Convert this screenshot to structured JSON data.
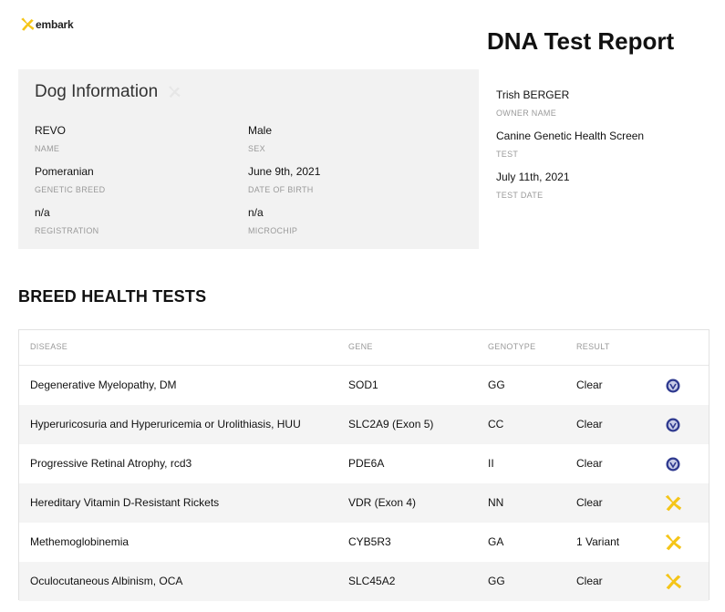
{
  "brand": {
    "name": "embark",
    "accent": "#f5c518"
  },
  "report": {
    "title": "DNA Test Report"
  },
  "dog_info": {
    "title": "Dog Information",
    "fields": [
      {
        "value": "REVO",
        "label": "NAME"
      },
      {
        "value": "Male",
        "label": "SEX"
      },
      {
        "value": "Pomeranian",
        "label": "GENETIC BREED"
      },
      {
        "value": "June 9th, 2021",
        "label": "DATE OF BIRTH"
      },
      {
        "value": "n/a",
        "label": "REGISTRATION"
      },
      {
        "value": "n/a",
        "label": "MICROCHIP"
      }
    ]
  },
  "owner_info": [
    {
      "value": "Trish BERGER",
      "label": "OWNER NAME"
    },
    {
      "value": "Canine Genetic Health Screen",
      "label": "TEST"
    },
    {
      "value": "July 11th, 2021",
      "label": "TEST DATE"
    }
  ],
  "breed_health": {
    "title": "BREED HEALTH TESTS",
    "headers": {
      "disease": "DISEASE",
      "gene": "GENE",
      "genotype": "GENOTYPE",
      "result": "RESULT"
    },
    "rows": [
      {
        "disease": "Degenerative Myelopathy, DM",
        "gene": "SOD1",
        "genotype": "GG",
        "result": "Clear",
        "icon": "verified-seal-icon"
      },
      {
        "disease": "Hyperuricosuria and Hyperuricemia or Urolithiasis, HUU",
        "gene": "SLC2A9 (Exon 5)",
        "genotype": "CC",
        "result": "Clear",
        "icon": "verified-seal-icon"
      },
      {
        "disease": "Progressive Retinal Atrophy, rcd3",
        "gene": "PDE6A",
        "genotype": "II",
        "result": "Clear",
        "icon": "verified-seal-icon"
      },
      {
        "disease": "Hereditary Vitamin D-Resistant Rickets",
        "gene": "VDR (Exon 4)",
        "genotype": "NN",
        "result": "Clear",
        "icon": "embark-star-icon"
      },
      {
        "disease": "Methemoglobinemia",
        "gene": "CYB5R3",
        "genotype": "GA",
        "result": "1 Variant",
        "icon": "embark-star-icon"
      },
      {
        "disease": "Oculocutaneous Albinism, OCA",
        "gene": "SLC45A2",
        "genotype": "GG",
        "result": "Clear",
        "icon": "embark-star-icon"
      }
    ]
  }
}
